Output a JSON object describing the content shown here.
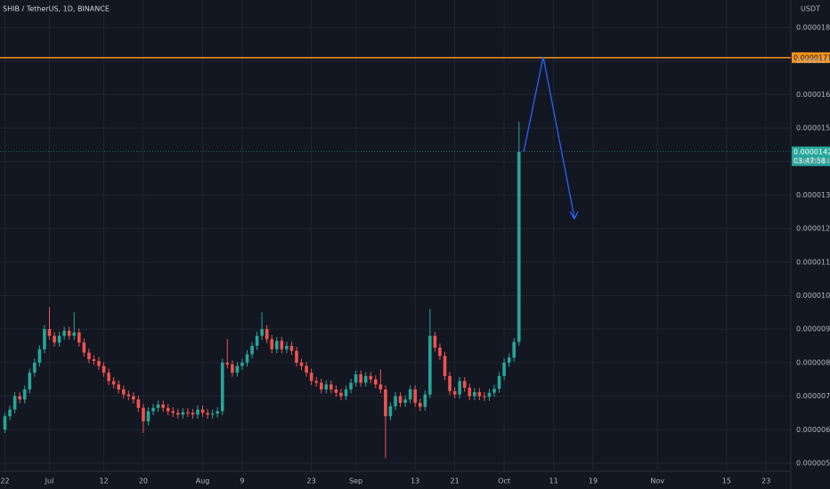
{
  "chart_data": {
    "type": "candlestick",
    "title": "SHIB / TetherUS, 1D, BINANCE",
    "y_unit": "USDT",
    "up_color": "#26a69a",
    "down_color": "#ef5350",
    "grid": true,
    "x": [
      "06-22",
      "06-23",
      "06-24",
      "06-25",
      "06-26",
      "06-27",
      "06-28",
      "06-29",
      "06-30",
      "07-01",
      "07-02",
      "07-03",
      "07-04",
      "07-05",
      "07-06",
      "07-07",
      "07-08",
      "07-09",
      "07-10",
      "07-11",
      "07-12",
      "07-13",
      "07-14",
      "07-15",
      "07-16",
      "07-17",
      "07-18",
      "07-19",
      "07-20",
      "07-21",
      "07-22",
      "07-23",
      "07-24",
      "07-25",
      "07-26",
      "07-27",
      "07-28",
      "07-29",
      "07-30",
      "07-31",
      "08-01",
      "08-02",
      "08-03",
      "08-04",
      "08-05",
      "08-06",
      "08-07",
      "08-08",
      "08-09",
      "08-10",
      "08-11",
      "08-12",
      "08-13",
      "08-14",
      "08-15",
      "08-16",
      "08-17",
      "08-18",
      "08-19",
      "08-20",
      "08-21",
      "08-22",
      "08-23",
      "08-24",
      "08-25",
      "08-26",
      "08-27",
      "08-28",
      "08-29",
      "08-30",
      "08-31",
      "09-01",
      "09-02",
      "09-03",
      "09-04",
      "09-05",
      "09-06",
      "09-07",
      "09-08",
      "09-09",
      "09-10",
      "09-11",
      "09-12",
      "09-13",
      "09-14",
      "09-15",
      "09-16",
      "09-17",
      "09-18",
      "09-19",
      "09-20",
      "09-21",
      "09-22",
      "09-23",
      "09-24",
      "09-25",
      "09-26",
      "09-27",
      "09-28",
      "09-29",
      "09-30",
      "10-01",
      "10-02",
      "10-03",
      "10-04"
    ],
    "open": [
      6e-06,
      6.4e-06,
      6.6e-06,
      7e-06,
      6.9e-06,
      7.2e-06,
      7.7e-06,
      8e-06,
      8.4e-06,
      9e-06,
      8.8e-06,
      8.6e-06,
      8.8e-06,
      8.95e-06,
      8.8e-06,
      8.9e-06,
      8.6e-06,
      8.3e-06,
      8.1e-06,
      8.05e-06,
      7.9e-06,
      7.7e-06,
      7.45e-06,
      7.35e-06,
      7.2e-06,
      7.05e-06,
      7e-06,
      6.9e-06,
      6.65e-06,
      6.25e-06,
      6.55e-06,
      6.65e-06,
      6.75e-06,
      6.65e-06,
      6.55e-06,
      6.5e-06,
      6.45e-06,
      6.52e-06,
      6.5e-06,
      6.45e-06,
      6.6e-06,
      6.5e-06,
      6.45e-06,
      6.48e-06,
      6.55e-06,
      8e-06,
      7.95e-06,
      7.7e-06,
      7.9e-06,
      8e-06,
      8.25e-06,
      8.5e-06,
      8.8e-06,
      9e-06,
      8.7e-06,
      8.4e-06,
      8.65e-06,
      8.4e-06,
      8.5e-06,
      8.35e-06,
      8e-06,
      7.9e-06,
      7.7e-06,
      7.45e-06,
      7.4e-06,
      7.2e-06,
      7.35e-06,
      7.2e-06,
      7.1e-06,
      7e-06,
      7.2e-06,
      7.4e-06,
      7.65e-06,
      7.4e-06,
      7.6e-06,
      7.5e-06,
      7.35e-06,
      7.2e-06,
      6.4e-06,
      6.7e-06,
      7e-06,
      6.8e-06,
      6.9e-06,
      7.2e-06,
      6.8e-06,
      6.68e-06,
      7.05e-06,
      8.8e-06,
      8.45e-06,
      8.2e-06,
      7.6e-06,
      7.15e-06,
      7.05e-06,
      7.45e-06,
      7.25e-06,
      7e-06,
      7.12e-06,
      7e-06,
      6.98e-06,
      7.1e-06,
      7.22e-06,
      7.6e-06,
      8e-06,
      8.15e-06,
      8.62e-06
    ],
    "high": [
      6.5e-06,
      6.72e-06,
      7.12e-06,
      7.12e-06,
      7.32e-06,
      7.82e-06,
      8.12e-06,
      8.52e-06,
      9.12e-06,
      9.65e-06,
      8.92e-06,
      8.92e-06,
      9.07e-06,
      9.07e-06,
      9.5e-06,
      9.02e-06,
      8.72e-06,
      8.42e-06,
      8.22e-06,
      8.17e-06,
      8.02e-06,
      7.82e-06,
      7.57e-06,
      7.47e-06,
      7.32e-06,
      7.17e-06,
      7.12e-06,
      7.02e-06,
      6.77e-06,
      6.67e-06,
      6.77e-06,
      6.87e-06,
      6.87e-06,
      6.77e-06,
      6.67e-06,
      6.62e-06,
      6.64e-06,
      6.64e-06,
      6.62e-06,
      6.72e-06,
      6.72e-06,
      6.62e-06,
      6.6e-06,
      6.67e-06,
      8.12e-06,
      8.7e-06,
      8.07e-06,
      8.02e-06,
      8.12e-06,
      8.37e-06,
      8.62e-06,
      8.92e-06,
      9.5e-06,
      9.12e-06,
      8.82e-06,
      8.77e-06,
      8.77e-06,
      8.62e-06,
      8.62e-06,
      8.47e-06,
      8.12e-06,
      8.02e-06,
      7.82e-06,
      7.57e-06,
      7.52e-06,
      7.47e-06,
      7.47e-06,
      7.32e-06,
      7.22e-06,
      7.32e-06,
      7.52e-06,
      7.77e-06,
      7.77e-06,
      7.72e-06,
      7.72e-06,
      7.62e-06,
      7.8e-06,
      7.32e-06,
      6.82e-06,
      7.12e-06,
      7.12e-06,
      7.02e-06,
      7.32e-06,
      7.32e-06,
      6.92e-06,
      7.17e-06,
      9.6e-06,
      8.92e-06,
      8.57e-06,
      8.32e-06,
      7.72e-06,
      7.27e-06,
      7.57e-06,
      7.57e-06,
      7.37e-06,
      7.24e-06,
      7.24e-06,
      7.12e-06,
      7.22e-06,
      7.34e-06,
      7.72e-06,
      8.12e-06,
      8.27e-06,
      8.74e-06,
      1.519e-05
    ],
    "low": [
      5.9e-06,
      6.28e-06,
      6.48e-06,
      6.78e-06,
      6.78e-06,
      7.08e-06,
      7.58e-06,
      7.88e-06,
      8.28e-06,
      8.68e-06,
      8.48e-06,
      8.48e-06,
      8.68e-06,
      8.68e-06,
      8.68e-06,
      8.48e-06,
      8.18e-06,
      7.98e-06,
      7.93e-06,
      7.78e-06,
      7.58e-06,
      7.33e-06,
      7.23e-06,
      7.08e-06,
      6.93e-06,
      6.88e-06,
      6.78e-06,
      6.53e-06,
      5.9e-06,
      6.13e-06,
      6.43e-06,
      6.53e-06,
      6.53e-06,
      6.43e-06,
      6.38e-06,
      6.33e-06,
      6.33e-06,
      6.38e-06,
      6.33e-06,
      6.33e-06,
      6.38e-06,
      6.33e-06,
      6.33e-06,
      6.36e-06,
      6.43e-06,
      7.83e-06,
      7.58e-06,
      7.58e-06,
      7.78e-06,
      7.88e-06,
      8.13e-06,
      8.38e-06,
      8.68e-06,
      8.58e-06,
      8.28e-06,
      8.28e-06,
      8.28e-06,
      8.28e-06,
      8.23e-06,
      7.88e-06,
      7.78e-06,
      7.58e-06,
      7.33e-06,
      7.28e-06,
      7.08e-06,
      7.08e-06,
      7.08e-06,
      6.98e-06,
      6.88e-06,
      6.88e-06,
      7.08e-06,
      7.28e-06,
      7.28e-06,
      7.28e-06,
      7.38e-06,
      7.23e-06,
      7.08e-06,
      5.15e-06,
      6.28e-06,
      6.58e-06,
      6.68e-06,
      6.68e-06,
      6.78e-06,
      6.68e-06,
      6.56e-06,
      6.56e-06,
      6.93e-06,
      8.33e-06,
      8.08e-06,
      7.48e-06,
      7.03e-06,
      6.93e-06,
      6.93e-06,
      7.13e-06,
      6.88e-06,
      6.88e-06,
      6.88e-06,
      6.86e-06,
      6.86e-06,
      6.98e-06,
      7.1e-06,
      7.48e-06,
      7.88e-06,
      8.03e-06,
      8.5e-06
    ],
    "close": [
      6.4e-06,
      6.6e-06,
      7e-06,
      6.9e-06,
      7.2e-06,
      7.7e-06,
      8e-06,
      8.4e-06,
      9e-06,
      8.8e-06,
      8.6e-06,
      8.8e-06,
      8.95e-06,
      8.8e-06,
      8.9e-06,
      8.6e-06,
      8.3e-06,
      8.1e-06,
      8.05e-06,
      7.9e-06,
      7.7e-06,
      7.45e-06,
      7.35e-06,
      7.2e-06,
      7.05e-06,
      7e-06,
      6.9e-06,
      6.65e-06,
      6.25e-06,
      6.55e-06,
      6.65e-06,
      6.75e-06,
      6.65e-06,
      6.55e-06,
      6.5e-06,
      6.45e-06,
      6.52e-06,
      6.5e-06,
      6.45e-06,
      6.6e-06,
      6.5e-06,
      6.45e-06,
      6.48e-06,
      6.55e-06,
      8e-06,
      7.95e-06,
      7.7e-06,
      7.9e-06,
      8e-06,
      8.25e-06,
      8.5e-06,
      8.8e-06,
      9e-06,
      8.7e-06,
      8.4e-06,
      8.65e-06,
      8.4e-06,
      8.5e-06,
      8.35e-06,
      8e-06,
      7.9e-06,
      7.7e-06,
      7.45e-06,
      7.4e-06,
      7.2e-06,
      7.35e-06,
      7.2e-06,
      7.1e-06,
      7e-06,
      7.2e-06,
      7.4e-06,
      7.65e-06,
      7.4e-06,
      7.6e-06,
      7.5e-06,
      7.35e-06,
      7.2e-06,
      6.4e-06,
      6.7e-06,
      7e-06,
      6.8e-06,
      6.9e-06,
      7.2e-06,
      6.8e-06,
      6.68e-06,
      7.05e-06,
      8.8e-06,
      8.45e-06,
      8.2e-06,
      7.6e-06,
      7.15e-06,
      7.05e-06,
      7.45e-06,
      7.25e-06,
      7e-06,
      7.12e-06,
      7e-06,
      6.98e-06,
      7.1e-06,
      7.22e-06,
      7.6e-06,
      8e-06,
      8.15e-06,
      8.62e-06,
      1.429e-05
    ],
    "xlim": [
      "06-21",
      "11-28"
    ],
    "xticks": [
      {
        "value": "06-22",
        "label": "22"
      },
      {
        "value": "07-01",
        "label": "Jul"
      },
      {
        "value": "07-12",
        "label": "12"
      },
      {
        "value": "07-20",
        "label": "20"
      },
      {
        "value": "08-01",
        "label": "Aug"
      },
      {
        "value": "08-09",
        "label": "9"
      },
      {
        "value": "08-23",
        "label": "23"
      },
      {
        "value": "09-01",
        "label": "Sep"
      },
      {
        "value": "09-13",
        "label": "13"
      },
      {
        "value": "09-21",
        "label": "21"
      },
      {
        "value": "10-01",
        "label": "Oct"
      },
      {
        "value": "10-11",
        "label": "11"
      },
      {
        "value": "10-19",
        "label": "19"
      },
      {
        "value": "11-01",
        "label": "Nov"
      },
      {
        "value": "11-15",
        "label": "15"
      },
      {
        "value": "11-23",
        "label": "23"
      }
    ],
    "ylim": [
      4.76e-06,
      1.882e-05
    ],
    "yticks": [
      {
        "value": 1.8e-05,
        "label": "0.00001800"
      },
      {
        "value": 1.7e-05,
        "label": "0.00001700"
      },
      {
        "value": 1.6e-05,
        "label": "0.00001600"
      },
      {
        "value": 1.5e-05,
        "label": "0.00001500"
      },
      {
        "value": 1.4e-05,
        "label": "0.00001400"
      },
      {
        "value": 1.3e-05,
        "label": "0.00001300"
      },
      {
        "value": 1.2e-05,
        "label": "0.00001200"
      },
      {
        "value": 1.1e-05,
        "label": "0.00001100"
      },
      {
        "value": 1e-05,
        "label": "0.00001000"
      },
      {
        "value": 9e-06,
        "label": "0.00000900"
      },
      {
        "value": 8e-06,
        "label": "0.00000800"
      },
      {
        "value": 7e-06,
        "label": "0.00000700"
      },
      {
        "value": 6e-06,
        "label": "0.00000600"
      },
      {
        "value": 5e-06,
        "label": "0.00000500"
      }
    ],
    "price_line": {
      "value": 1.71e-05,
      "label": "0.00001710",
      "color": "#f7931a"
    },
    "current_price": {
      "value": 1.429e-05,
      "label": "0.00001429",
      "countdown": "03:47:58",
      "color": "#26a69a"
    }
  }
}
